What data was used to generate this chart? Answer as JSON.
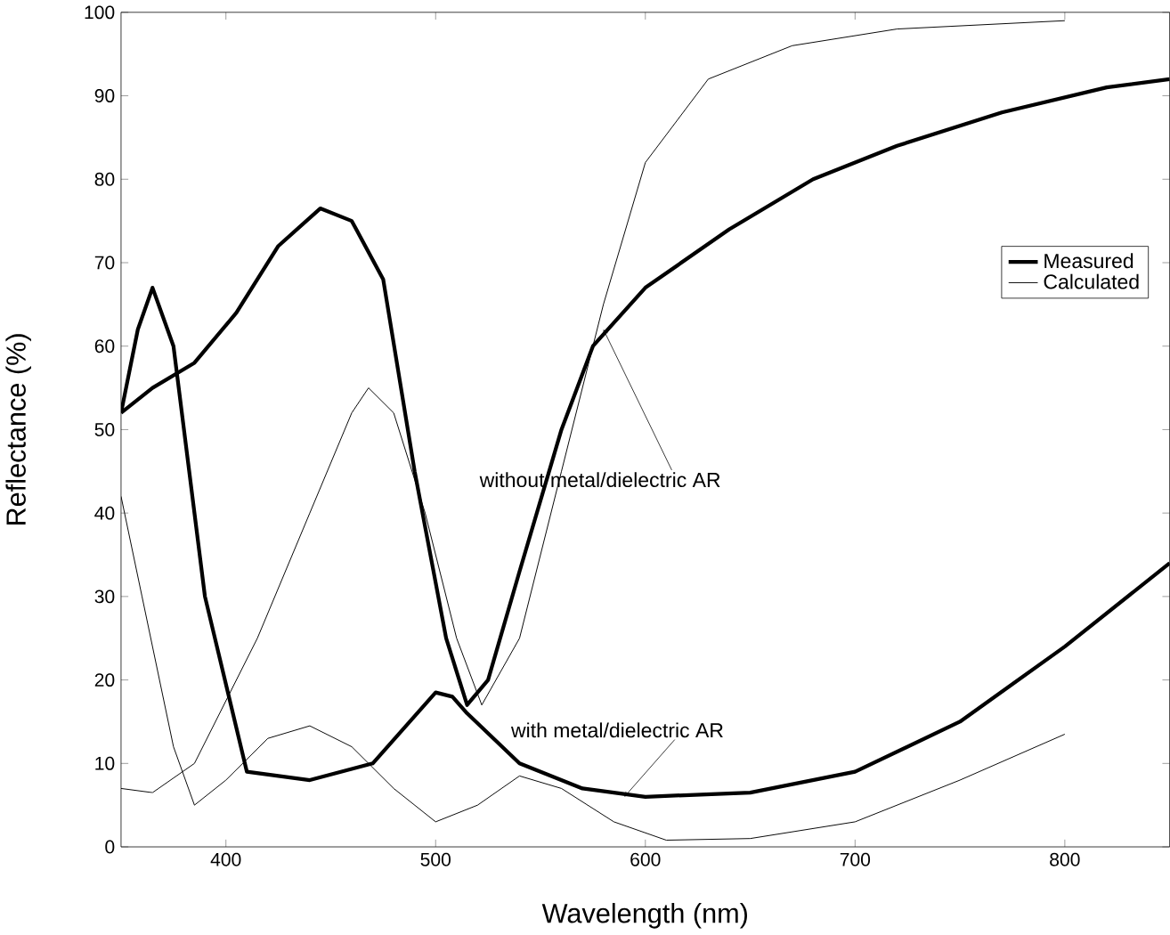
{
  "chart_data": {
    "type": "line",
    "xlabel": "Wavelength (nm)",
    "ylabel": "Reflectance (%)",
    "xlim": [
      350,
      850
    ],
    "ylim": [
      0,
      100
    ],
    "xticks": [
      400,
      500,
      600,
      700,
      800
    ],
    "yticks": [
      0,
      10,
      20,
      30,
      40,
      50,
      60,
      70,
      80,
      90,
      100
    ],
    "legend": "right",
    "grid": false,
    "line_style": "solid",
    "marker": "none",
    "series": [
      {
        "name": "Measured",
        "color": "#000000",
        "x": [
          350,
          365,
          385,
          405,
          425,
          445,
          460,
          475,
          490,
          505,
          515,
          525,
          540,
          560,
          575,
          600,
          640,
          680,
          720,
          770,
          820,
          850
        ],
        "values": [
          52,
          55,
          58,
          64,
          72,
          76.5,
          75,
          68,
          45,
          25,
          17,
          20,
          33,
          50,
          60,
          67,
          74,
          80,
          84,
          88,
          91,
          92
        ]
      },
      {
        "color": "#000000",
        "x": [
          350,
          358,
          365,
          375,
          390,
          410,
          440,
          470,
          500,
          508,
          515,
          540,
          570,
          600,
          650,
          700,
          750,
          800,
          850
        ],
        "values": [
          52,
          62,
          67,
          60,
          30,
          9,
          8,
          10,
          18.5,
          18,
          16,
          10,
          7,
          6,
          6.5,
          9,
          15,
          24,
          34
        ]
      },
      {
        "name": "Calculated",
        "color": "#000000",
        "x": [
          350,
          365,
          385,
          415,
          440,
          460,
          468,
          480,
          495,
          510,
          522,
          540,
          560,
          580,
          600,
          630,
          670,
          720,
          800
        ],
        "values": [
          7,
          6.5,
          10,
          25,
          40,
          52,
          55,
          52,
          40,
          25,
          17,
          25,
          45,
          65,
          82,
          92,
          96,
          98,
          99
        ]
      },
      {
        "color": "#000000",
        "x": [
          350,
          360,
          375,
          385,
          400,
          420,
          440,
          460,
          480,
          500,
          520,
          540,
          560,
          585,
          610,
          650,
          700,
          750,
          800
        ],
        "values": [
          42,
          30,
          12,
          5,
          8,
          13,
          14.5,
          12,
          7,
          3,
          5,
          8.5,
          7,
          3,
          0.8,
          1,
          3,
          8,
          13.5
        ]
      }
    ],
    "annotations": [
      {
        "text": "without metal/dielectric AR",
        "x": 580,
        "y": 62
      },
      {
        "text": "with metal/dielectric AR",
        "x": 590,
        "y": 6
      }
    ]
  }
}
